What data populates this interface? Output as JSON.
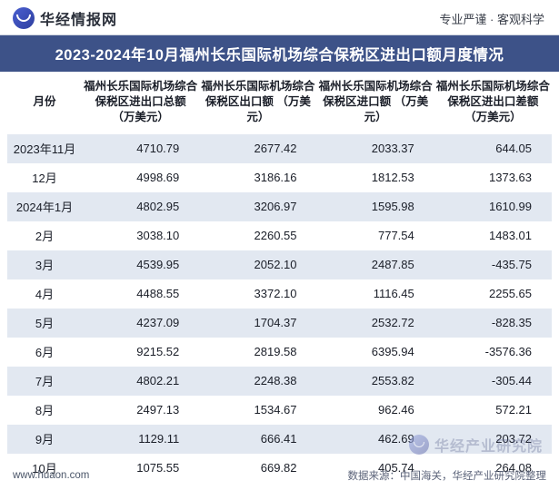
{
  "header": {
    "logo_text": "华经情报网",
    "tagline": "专业严谨 · 客观科学"
  },
  "title": "2023-2024年10月福州长乐国际机场综合保税区进出口额月度情况",
  "table": {
    "type": "table",
    "background_odd": "#e2e8f1",
    "background_even": "#ffffff",
    "header_bg": "#3d5288",
    "text_color": "#1a1e28",
    "font_size_header": 12.5,
    "font_size_body": 13,
    "columns": [
      "月份",
      "福州长乐国际机场综合保税区进出口总额\n（万美元）",
      "福州长乐国际机场综合保税区出口额\n（万美元）",
      "福州长乐国际机场综合保税区进口额\n（万美元）",
      "福州长乐国际机场综合保税区进出口差额\n（万美元）"
    ],
    "rows": [
      [
        "2023年11月",
        "4710.79",
        "2677.42",
        "2033.37",
        "644.05"
      ],
      [
        "12月",
        "4998.69",
        "3186.16",
        "1812.53",
        "1373.63"
      ],
      [
        "2024年1月",
        "4802.95",
        "3206.97",
        "1595.98",
        "1610.99"
      ],
      [
        "2月",
        "3038.10",
        "2260.55",
        "777.54",
        "1483.01"
      ],
      [
        "3月",
        "4539.95",
        "2052.10",
        "2487.85",
        "-435.75"
      ],
      [
        "4月",
        "4488.55",
        "3372.10",
        "1116.45",
        "2255.65"
      ],
      [
        "5月",
        "4237.09",
        "1704.37",
        "2532.72",
        "-828.35"
      ],
      [
        "6月",
        "9215.52",
        "2819.58",
        "6395.94",
        "-3576.36"
      ],
      [
        "7月",
        "4802.21",
        "2248.38",
        "2553.82",
        "-305.44"
      ],
      [
        "8月",
        "2497.13",
        "1534.67",
        "962.46",
        "572.21"
      ],
      [
        "9月",
        "1129.11",
        "666.41",
        "462.69",
        "203.72"
      ],
      [
        "10月",
        "1075.55",
        "669.82",
        "405.74",
        "264.08"
      ]
    ]
  },
  "footer": {
    "link": "www.huaon.com",
    "source": "数据来源：中国海关，华经产业研究院整理"
  },
  "watermark": {
    "text": "华经产业研究院"
  }
}
